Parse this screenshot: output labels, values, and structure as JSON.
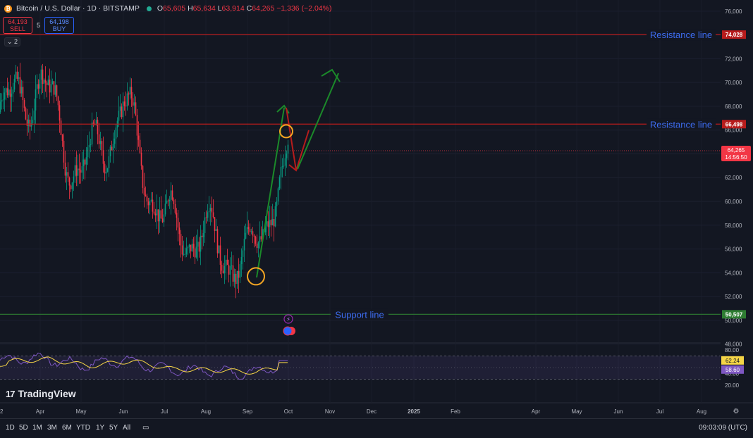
{
  "header": {
    "symbol_title": "Bitcoin / U.S. Dollar · 1D · BITSTAMP",
    "open_label": "O",
    "open": "65,605",
    "high_label": "H",
    "high": "65,634",
    "low_label": "L",
    "low": "63,914",
    "close_label": "C",
    "close": "64,265",
    "change": "−1,336 (−2.04%)"
  },
  "trade": {
    "sell_price": "64,193",
    "sell_label": "SELL",
    "spread": "5",
    "buy_price": "64,198",
    "buy_label": "BUY"
  },
  "indicator_toggle": "2",
  "logo_text": "TradingView",
  "timeframes": [
    "1D",
    "5D",
    "1M",
    "3M",
    "6M",
    "YTD",
    "1Y",
    "5Y",
    "All"
  ],
  "clock": "09:03:09 (UTC)",
  "colors": {
    "bg": "#131722",
    "up": "#089981",
    "down": "#f23645",
    "support": "#2e7d32",
    "resistance": "#b71c1c",
    "label_blue": "#2962ff",
    "rsi": "#7e57c2",
    "rsi_ma": "#f5d547"
  },
  "chart_data": {
    "type": "candlestick",
    "x_ticks": [
      "Apr",
      "May",
      "Jun",
      "Jul",
      "Aug",
      "Sep",
      "Oct",
      "Nov",
      "Dec",
      "2025",
      "Feb",
      "Apr",
      "May",
      "Jun",
      "Jul",
      "Aug"
    ],
    "x_tick_partial": "2",
    "y_ticks": [
      "76,000",
      "74,000",
      "72,000",
      "70,000",
      "68,000",
      "66,000",
      "64,000",
      "62,000",
      "60,000",
      "58,000",
      "56,000",
      "54,000",
      "52,000",
      "50,000",
      "48,000"
    ],
    "ylim": [
      46500,
      76700
    ],
    "last_price": {
      "value": 64265,
      "label": "64,265",
      "countdown": "14:56:50"
    },
    "levels": [
      {
        "name": "Resistance line",
        "value": 74028,
        "label": "74,028",
        "kind": "resistance"
      },
      {
        "name": "Resistance line",
        "value": 66498,
        "label": "66,498",
        "kind": "resistance"
      },
      {
        "name": "Support line",
        "value": 50507,
        "label": "50,507",
        "kind": "support"
      }
    ],
    "anchors": [
      {
        "month": "Mar",
        "value": 67500
      },
      {
        "month": "Apr",
        "value": 70000
      },
      {
        "month": "May",
        "value": 62000
      },
      {
        "month": "Jun",
        "value": 68000
      },
      {
        "month": "Jul",
        "value": 58000
      },
      {
        "month": "Aug",
        "value": 57000
      },
      {
        "month": "Sep",
        "value": 54500
      },
      {
        "month": "Oct",
        "value": 64265
      }
    ],
    "circles": [
      {
        "value": 53700
      },
      {
        "value": 65900
      }
    ],
    "projection_arrows": [
      "up-to-68000",
      "down-to-62000",
      "up-to-70700"
    ],
    "rsi": {
      "y_ticks": [
        "80.00",
        "40.00",
        "20.00"
      ],
      "value": "62.24",
      "ma": "58.60",
      "upper": 70,
      "lower": 30
    }
  }
}
